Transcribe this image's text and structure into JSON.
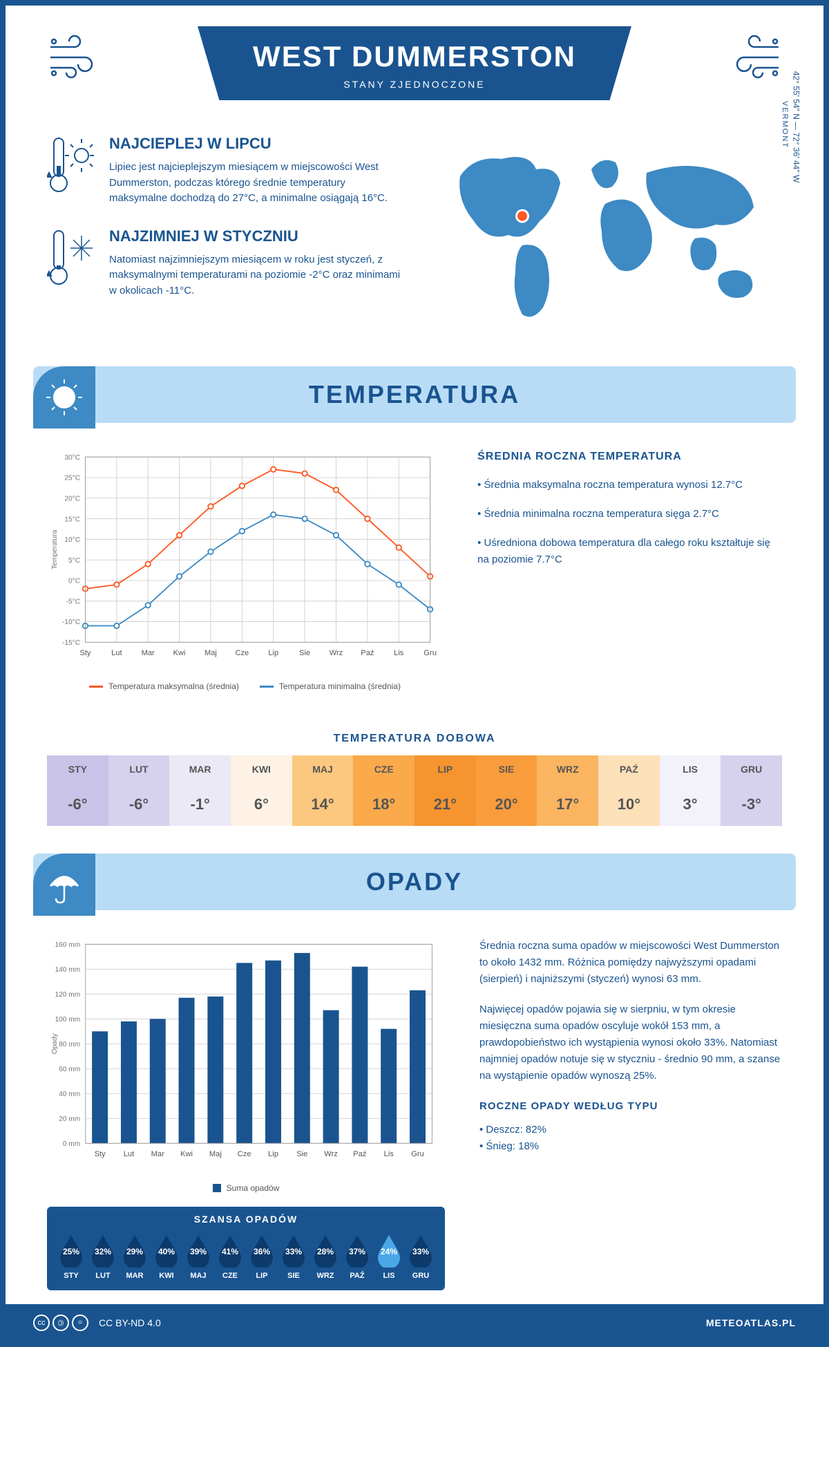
{
  "header": {
    "title": "WEST DUMMERSTON",
    "subtitle": "STANY ZJEDNOCZONE"
  },
  "intro": {
    "warm": {
      "heading": "NAJCIEPLEJ W LIPCU",
      "text": "Lipiec jest najcieplejszym miesiącem w miejscowości West Dummerston, podczas którego średnie temperatury maksymalne dochodzą do 27°C, a minimalne osiągają 16°C."
    },
    "cold": {
      "heading": "NAJZIMNIEJ W STYCZNIU",
      "text": "Natomiast najzimniejszym miesiącem w roku jest styczeń, z maksymalnymi temperaturami na poziomie -2°C oraz minimami w okolicach -11°C."
    },
    "coords": "42° 55' 54\" N — 72° 36' 44\" W",
    "region": "VERMONT",
    "marker": {
      "lon_pct": 26,
      "lat_pct": 42,
      "color": "#ff5722"
    }
  },
  "temperature": {
    "section_title": "TEMPERATURA",
    "chart": {
      "type": "line",
      "months": [
        "Sty",
        "Lut",
        "Mar",
        "Kwi",
        "Maj",
        "Cze",
        "Lip",
        "Sie",
        "Wrz",
        "Paź",
        "Lis",
        "Gru"
      ],
      "y_label": "Temperatura",
      "ylim": [
        -15,
        30
      ],
      "ytick_step": 5,
      "ytick_suffix": "°C",
      "grid_color": "#d0d0d0",
      "background_color": "#ffffff",
      "series": [
        {
          "name": "Temperatura maksymalna (średnia)",
          "color": "#ff5722",
          "values": [
            -2,
            -1,
            4,
            11,
            18,
            23,
            27,
            26,
            22,
            15,
            8,
            1
          ]
        },
        {
          "name": "Temperatura minimalna (średnia)",
          "color": "#3d8ac4",
          "values": [
            -11,
            -11,
            -6,
            1,
            7,
            12,
            16,
            15,
            11,
            4,
            -1,
            -7
          ]
        }
      ],
      "line_width": 2,
      "marker": "circle",
      "marker_size": 4
    },
    "info": {
      "heading": "ŚREDNIA ROCZNA TEMPERATURA",
      "items": [
        "Średnia maksymalna roczna temperatura wynosi 12.7°C",
        "Średnia minimalna roczna temperatura sięga 2.7°C",
        "Uśredniona dobowa temperatura dla całego roku kształtuje się na poziomie 7.7°C"
      ]
    },
    "daily_table": {
      "heading": "TEMPERATURA DOBOWA",
      "months": [
        "STY",
        "LUT",
        "MAR",
        "KWI",
        "MAJ",
        "CZE",
        "LIP",
        "SIE",
        "WRZ",
        "PAŹ",
        "LIS",
        "GRU"
      ],
      "values": [
        "-6°",
        "-6°",
        "-1°",
        "6°",
        "14°",
        "18°",
        "21°",
        "20°",
        "17°",
        "10°",
        "3°",
        "-3°"
      ],
      "colors": [
        "#c9c3e8",
        "#d6d1ed",
        "#ece9f6",
        "#fdf2e4",
        "#fcc87f",
        "#faa94b",
        "#f6942f",
        "#f89c3c",
        "#fbb560",
        "#fce0b8",
        "#f3f1fa",
        "#d6d1ed"
      ]
    }
  },
  "precipitation": {
    "section_title": "OPADY",
    "chart": {
      "type": "bar",
      "months": [
        "Sty",
        "Lut",
        "Mar",
        "Kwi",
        "Maj",
        "Cze",
        "Lip",
        "Sie",
        "Wrz",
        "Paź",
        "Lis",
        "Gru"
      ],
      "values": [
        90,
        98,
        100,
        117,
        118,
        145,
        147,
        153,
        107,
        142,
        92,
        123
      ],
      "y_label": "Opady",
      "ylim": [
        0,
        160
      ],
      "ytick_step": 20,
      "ytick_suffix": " mm",
      "bar_color": "#1a5490",
      "bar_width": 0.55,
      "grid_color": "#d0d0d0",
      "legend_label": "Suma opadów"
    },
    "info": {
      "p1": "Średnia roczna suma opadów w miejscowości West Dummerston to około 1432 mm. Różnica pomiędzy najwyższymi opadami (sierpień) i najniższymi (styczeń) wynosi 63 mm.",
      "p2": "Najwięcej opadów pojawia się w sierpniu, w tym okresie miesięczna suma opadów oscyluje wokół 153 mm, a prawdopobieństwo ich wystąpienia wynosi około 33%. Natomiast najmniej opadów notuje się w styczniu - średnio 90 mm, a szanse na wystąpienie opadów wynoszą 25%.",
      "type_heading": "ROCZNE OPADY WEDŁUG TYPU",
      "types": [
        "Deszcz: 82%",
        "Śnieg: 18%"
      ]
    },
    "chance": {
      "heading": "SZANSA OPADÓW",
      "months": [
        "STY",
        "LUT",
        "MAR",
        "KWI",
        "MAJ",
        "CZE",
        "LIP",
        "SIE",
        "WRZ",
        "PAŹ",
        "LIS",
        "GRU"
      ],
      "percents": [
        "25%",
        "32%",
        "29%",
        "40%",
        "39%",
        "41%",
        "36%",
        "33%",
        "28%",
        "37%",
        "24%",
        "33%"
      ],
      "drop_colors": [
        "#0d3a6b",
        "#0d3a6b",
        "#0d3a6b",
        "#0d3a6b",
        "#0d3a6b",
        "#0d3a6b",
        "#0d3a6b",
        "#0d3a6b",
        "#0d3a6b",
        "#0d3a6b",
        "#4aa8e8",
        "#0d3a6b"
      ]
    }
  },
  "footer": {
    "license": "CC BY-ND 4.0",
    "site": "METEOATLAS.PL"
  }
}
